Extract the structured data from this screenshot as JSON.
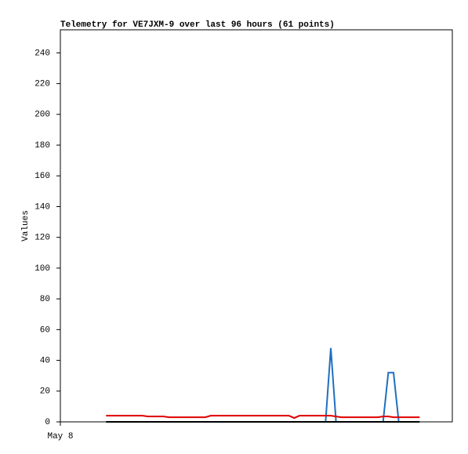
{
  "chart_data": {
    "type": "line",
    "title": "Telemetry for VE7JXM-9 over last 96 hours (61 points)",
    "y_label": "Values",
    "x": [
      14,
      15.6,
      17.2,
      18.8,
      20.4,
      22,
      23.6,
      25.2,
      26.8,
      28.4,
      30,
      31.6,
      33.2,
      34.8,
      36.4,
      38,
      39.6,
      41.2,
      42.8,
      44.4,
      46,
      47.6,
      49.2,
      50.8,
      52.4,
      54,
      55.6,
      57.2,
      58.8,
      60.4,
      62,
      63.6,
      65.2,
      66.8,
      68.4,
      70,
      71.6,
      73.2,
      74.8,
      76.4,
      78,
      79.6,
      81.2,
      82.8,
      84.4,
      86,
      87.6,
      89.2,
      90.8,
      92.4,
      94,
      95.6,
      97.2,
      98.8,
      100.4,
      102,
      103.6,
      105.2,
      106.8,
      108.4,
      110
    ],
    "series": [
      {
        "color": "#1f6fc0",
        "values": [
          0,
          0,
          0,
          0,
          0,
          0,
          0,
          0,
          0,
          0,
          0,
          0,
          0,
          0,
          0,
          0,
          0,
          0,
          0,
          0,
          0,
          0,
          0,
          0,
          0,
          0,
          0,
          0,
          0,
          0,
          0,
          0,
          0,
          0,
          0,
          0,
          0,
          0,
          0,
          0,
          0,
          0,
          0,
          48,
          0,
          0,
          0,
          0,
          0,
          0,
          0,
          0,
          0,
          0,
          32,
          32,
          0,
          0,
          0,
          0,
          0
        ]
      },
      {
        "color": "#e00000",
        "values": [
          4,
          4,
          4,
          4,
          4,
          4,
          4,
          4,
          3.5,
          3.5,
          3.5,
          3.5,
          3,
          3,
          3,
          3,
          3,
          3,
          3,
          3,
          4,
          4,
          4,
          4,
          4,
          4,
          4,
          4,
          4,
          4,
          4,
          4,
          4,
          4,
          4,
          4,
          2.5,
          4,
          4,
          4,
          4,
          4,
          4,
          4,
          3.5,
          3,
          3,
          3,
          3,
          3,
          3,
          3,
          3,
          3.5,
          3.5,
          3,
          3,
          3,
          3,
          3,
          3
        ]
      },
      {
        "color": "#000000",
        "values": [
          0,
          0,
          0,
          0,
          0,
          0,
          0,
          0,
          0,
          0,
          0,
          0,
          0,
          0,
          0,
          0,
          0,
          0,
          0,
          0,
          0,
          0,
          0,
          0,
          0,
          0,
          0,
          0,
          0,
          0,
          0,
          0,
          0,
          0,
          0,
          0,
          0,
          0,
          0,
          0,
          0,
          0,
          0,
          0,
          0,
          0,
          0,
          0,
          0,
          0,
          0,
          0,
          0,
          0,
          0,
          0,
          0,
          0,
          0,
          0,
          0
        ]
      }
    ],
    "xlim": [
      0,
      120
    ],
    "xticks": [
      {
        "value": 0,
        "label": "May 8"
      }
    ],
    "ylim": [
      0,
      255
    ],
    "yticks": [
      0,
      20,
      40,
      60,
      80,
      100,
      120,
      140,
      160,
      180,
      200,
      220,
      240
    ]
  }
}
